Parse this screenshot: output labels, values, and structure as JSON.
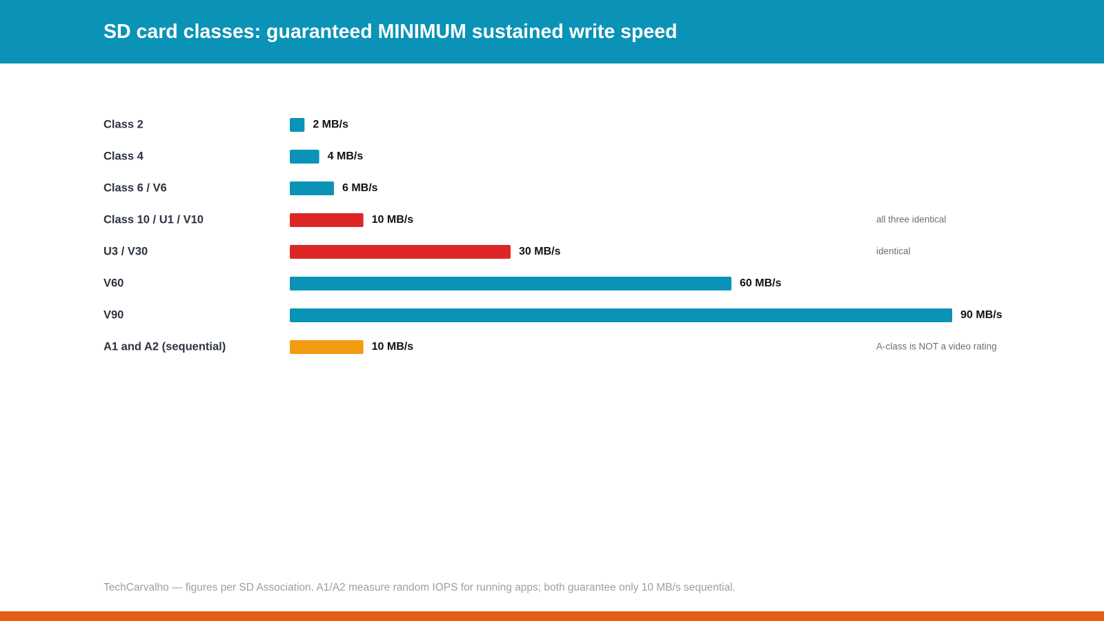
{
  "header": {
    "title": "SD card classes: guaranteed MINIMUM sustained write speed"
  },
  "colors": {
    "header_bg": "#0a93b7",
    "bar_default": "#0a93b7",
    "bar_highlight": "#dd2626",
    "bar_a_class": "#f39c12",
    "bottom_accent": "#e65c13"
  },
  "chart_data": {
    "type": "bar",
    "orientation": "horizontal",
    "title": "SD card classes: guaranteed MINIMUM sustained write speed",
    "xlabel": "",
    "ylabel": "",
    "unit": "MB/s",
    "xlim": [
      0,
      90
    ],
    "grid": false,
    "categories": [
      "Class 2",
      "Class 4",
      "Class 6 / V6",
      "Class 10 / U1 / V10",
      "U3 / V30",
      "V60",
      "V90",
      "A1 and A2 (sequential)"
    ],
    "values": [
      2,
      4,
      6,
      10,
      30,
      60,
      90,
      10
    ],
    "value_labels": [
      "2 MB/s",
      "4 MB/s",
      "6 MB/s",
      "10 MB/s",
      "30 MB/s",
      "60 MB/s",
      "90 MB/s",
      "10 MB/s"
    ],
    "bar_colors": [
      "#0a93b7",
      "#0a93b7",
      "#0a93b7",
      "#dd2626",
      "#dd2626",
      "#0a93b7",
      "#0a93b7",
      "#f39c12"
    ],
    "annotations": [
      "",
      "",
      "",
      "all three identical",
      "identical",
      "",
      "",
      "A-class is NOT a video rating"
    ]
  },
  "footer": {
    "note": "TechCarvalho — figures per SD Association. A1/A2 measure random IOPS for running apps; both guarantee only 10 MB/s sequential."
  }
}
